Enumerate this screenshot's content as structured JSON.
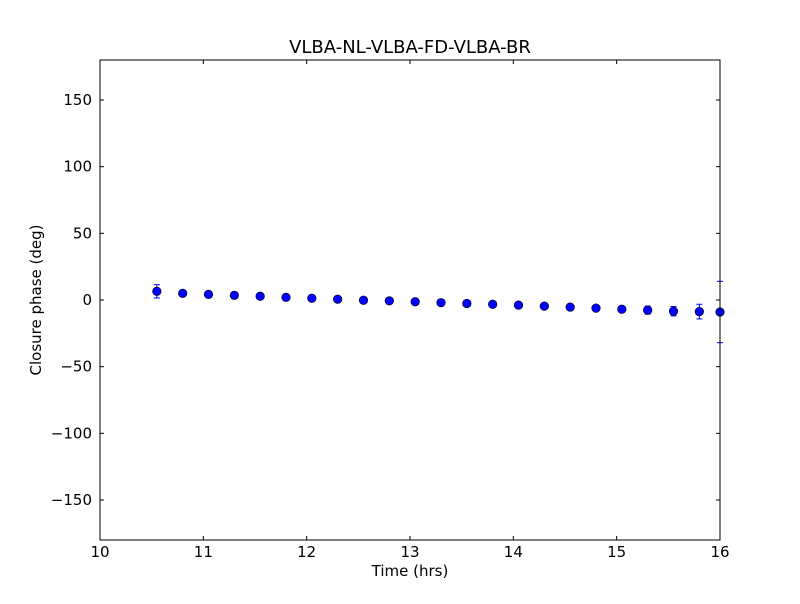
{
  "chart_data": {
    "type": "scatter",
    "title": "VLBA-NL-VLBA-FD-VLBA-BR",
    "xlabel": "Time (hrs)",
    "ylabel": "Closure phase (deg)",
    "xlim": [
      10,
      16
    ],
    "ylim": [
      -180,
      180
    ],
    "x_ticks": [
      10,
      11,
      12,
      13,
      14,
      15,
      16
    ],
    "y_ticks": [
      -150,
      -100,
      -50,
      0,
      50,
      100,
      150
    ],
    "x_tick_labels": [
      "10",
      "11",
      "12",
      "13",
      "14",
      "15",
      "16"
    ],
    "y_tick_labels": [
      "−150",
      "−100",
      "−50",
      "0",
      "50",
      "100",
      "150"
    ],
    "grid": false,
    "marker_color": "#0000ff",
    "series": [
      {
        "x": [
          10.55,
          10.8,
          11.05,
          11.3,
          11.55,
          11.8,
          12.05,
          12.3,
          12.55,
          12.8,
          13.05,
          13.3,
          13.55,
          13.8,
          14.05,
          14.3,
          14.55,
          14.8,
          15.05,
          15.3,
          15.55,
          15.8,
          16.0
        ],
        "y": [
          6.5,
          5.0,
          4.2,
          3.5,
          2.8,
          2.0,
          1.3,
          0.6,
          -0.2,
          -0.6,
          -1.3,
          -2.0,
          -2.6,
          -3.2,
          -3.8,
          -4.6,
          -5.3,
          -6.1,
          -6.9,
          -7.6,
          -8.4,
          -8.7,
          -9.0
        ],
        "yerr": [
          5.0,
          2.0,
          2.0,
          2.0,
          2.0,
          2.0,
          2.0,
          2.0,
          2.0,
          2.0,
          2.0,
          2.0,
          2.0,
          2.0,
          2.0,
          2.0,
          2.0,
          2.0,
          2.0,
          3.0,
          3.5,
          5.5,
          23.0
        ]
      }
    ]
  }
}
